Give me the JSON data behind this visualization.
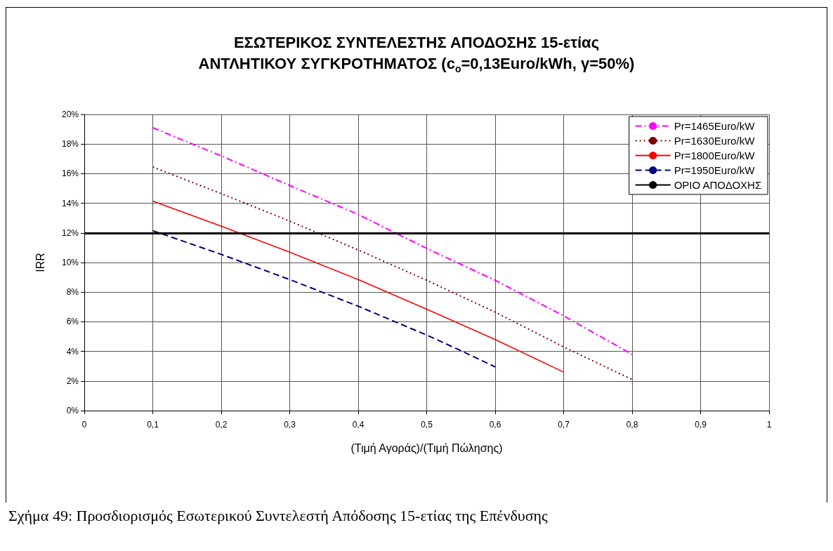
{
  "chart_data": {
    "type": "line",
    "title": "ΕΣΩΤΕΡΙΚΟΣ ΣΥΝΤΕΛΕΣΤΗΣ ΑΠΟΔΟΣΗΣ 15-ετίας\nΑΝΤΛΗΤΙΚΟΥ ΣΥΓΚΡΟΤΗΜΑΤΟΣ (c$_{o}$=0,13Euro/kWh, γ=50%)",
    "xlabel": "(Τιμή Αγοράς)/(Τιμή Πώλησης)",
    "ylabel": "IRR",
    "annotations": [
      "Σχήμα 49: Προσδιορισμός Εσωτερικού Συντελεστή Απόδοσης 15-ετίας της Επένδυσης"
    ],
    "x": [
      0.1,
      0.2,
      0.3,
      0.4,
      0.5,
      0.6,
      0.7,
      0.8
    ],
    "series": [
      {
        "name": "Pr=1465Euro/kW",
        "color": "#ff00ff",
        "line_style": "dashdot",
        "values": [
          19.1,
          17.2,
          15.2,
          13.25,
          10.95,
          8.8,
          6.4,
          3.8
        ]
      },
      {
        "name": "Pr=1630Euro/kW",
        "color": "#800000",
        "line_style": "dotted",
        "values": [
          16.45,
          14.65,
          12.8,
          10.85,
          8.8,
          6.65,
          4.3,
          2.1
        ]
      },
      {
        "name": "Pr=1800Euro/kW",
        "color": "#ff0000",
        "line_style": "solid",
        "values": [
          14.15,
          12.45,
          10.7,
          8.85,
          6.85,
          4.8,
          2.6,
          null
        ]
      },
      {
        "name": "Pr=1950Euro/kW",
        "color": "#000080",
        "line_style": "dashed",
        "x": [
          0.1,
          0.2,
          0.3,
          0.4,
          0.5,
          0.55,
          0.6
        ],
        "values": [
          12.15,
          10.55,
          8.85,
          7.05,
          5.1,
          4.05,
          2.95
        ]
      }
    ],
    "ref_lines": [
      {
        "axis": "y",
        "value": 12,
        "label": "ΟΡΙΟ ΑΠΟΔΟΧΗΣ",
        "color": "#000000"
      }
    ],
    "xlim": [
      0,
      1
    ],
    "xticks": [
      0,
      {
        "value": 0.1,
        "label": "0,1"
      },
      {
        "value": 0.2,
        "label": "0,2"
      },
      {
        "value": 0.3,
        "label": "0,3"
      },
      {
        "value": 0.4,
        "label": "0,4"
      },
      {
        "value": 0.5,
        "label": "0,5"
      },
      {
        "value": 0.6,
        "label": "0,6"
      },
      {
        "value": 0.7,
        "label": "0,7"
      },
      {
        "value": 0.8,
        "label": "0,8"
      },
      {
        "value": 0.9,
        "label": "0,9"
      },
      1
    ],
    "ylim": [
      0,
      20
    ],
    "yticks": [
      {
        "value": 0,
        "label": "0%"
      },
      {
        "value": 2,
        "label": "2%"
      },
      {
        "value": 4,
        "label": "4%"
      },
      {
        "value": 6,
        "label": "6%"
      },
      {
        "value": 8,
        "label": "8%"
      },
      {
        "value": 10,
        "label": "10%"
      },
      {
        "value": 12,
        "label": "12%"
      },
      {
        "value": 14,
        "label": "14%"
      },
      {
        "value": 16,
        "label": "16%"
      },
      {
        "value": 18,
        "label": "18%"
      },
      {
        "value": 20,
        "label": "20%"
      }
    ],
    "grid": true,
    "legend": "top right",
    "marker": "none"
  }
}
